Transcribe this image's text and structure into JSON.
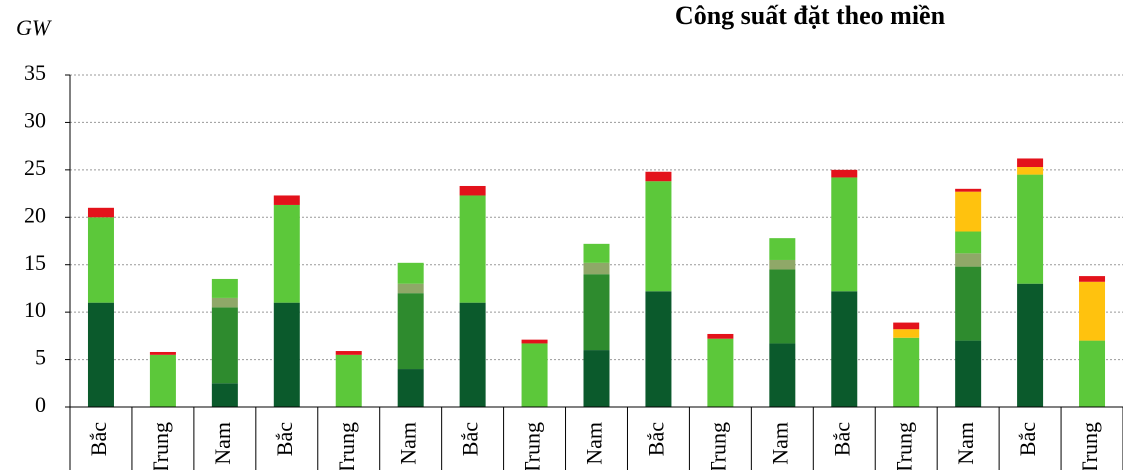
{
  "chart_data": {
    "type": "bar",
    "stacked": true,
    "title": "Công suất đặt theo miền",
    "y_label": "GW",
    "categories": [
      "Bắc",
      "Trung",
      "Nam",
      "Bắc",
      "Trung",
      "Nam",
      "Bắc",
      "Trung",
      "Nam",
      "Bắc",
      "Trung",
      "Nam",
      "Bắc",
      "Trung",
      "Nam",
      "Bắc",
      "Trung"
    ],
    "series": [
      {
        "color": "#0b5a2c",
        "values": [
          11,
          0,
          2.5,
          11,
          0,
          4,
          11,
          0,
          6,
          12.2,
          0,
          6.7,
          12.2,
          0,
          7,
          13,
          0
        ]
      },
      {
        "color": "#2e8b2e",
        "values": [
          0,
          0,
          8,
          0,
          0,
          8,
          0,
          0,
          8,
          0,
          0,
          7.8,
          0,
          0,
          7.8,
          0,
          0
        ]
      },
      {
        "color": "#8fa868",
        "values": [
          0,
          0,
          1,
          0,
          0,
          1,
          0,
          0,
          1.2,
          0,
          0,
          1,
          0,
          0,
          1.4,
          0,
          0
        ]
      },
      {
        "color": "#5cc83a",
        "values": [
          9,
          5.5,
          2,
          10.3,
          5.5,
          2.2,
          11.3,
          6.7,
          2,
          11.6,
          7.2,
          2.3,
          12,
          7.3,
          2.3,
          11.5,
          7
        ]
      },
      {
        "color": "#ffc20e",
        "values": [
          0,
          0,
          0,
          0,
          0,
          0,
          0,
          0,
          0,
          0,
          0,
          0,
          0,
          0.9,
          4.2,
          0.8,
          6.2
        ]
      },
      {
        "color": "#e3121b",
        "values": [
          1,
          0.3,
          0,
          1,
          0.4,
          0,
          1,
          0.4,
          0,
          1,
          0.5,
          0,
          0.8,
          0.7,
          0.3,
          0.9,
          0.6
        ]
      }
    ],
    "ylim": [
      0,
      35
    ],
    "yticks": [
      0,
      5,
      10,
      15,
      20,
      25,
      30,
      35
    ],
    "grid": true
  }
}
